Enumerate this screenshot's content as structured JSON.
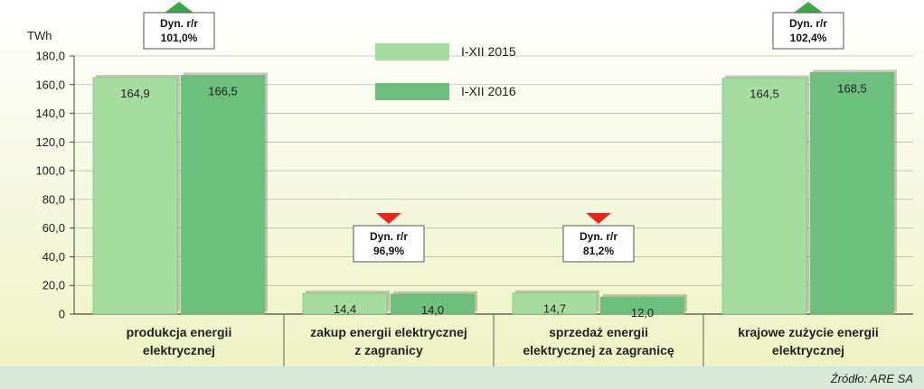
{
  "chart_data": {
    "type": "bar",
    "ylabel": "TWh",
    "ylim": [
      0,
      180
    ],
    "yticks": [
      "0",
      "20,0",
      "40,0",
      "60,0",
      "80,0",
      "100,0",
      "120,0",
      "140,0",
      "160,0",
      "180,0"
    ],
    "grid": true,
    "legend_position": "top-center",
    "categories": [
      [
        "produkcja energii",
        "elektrycznej"
      ],
      [
        "zakup energii elektrycznej",
        "z zagranicy"
      ],
      [
        "sprzedaż energii",
        "elektrycznej za zagranicę"
      ],
      [
        "krajowe zużycie energii",
        "elektrycznej"
      ]
    ],
    "series": [
      {
        "name": "I-XII 2015",
        "values": [
          164.9,
          14.4,
          14.7,
          164.5
        ],
        "labels": [
          "164,9",
          "14,4",
          "14,7",
          "164,5"
        ],
        "color": "#a6dca0"
      },
      {
        "name": "I-XII 2016",
        "values": [
          166.5,
          14.0,
          12.0,
          168.5
        ],
        "labels": [
          "166,5",
          "14,0",
          "12,0",
          "168,5"
        ],
        "color": "#6cbf7c"
      }
    ],
    "dynamics": [
      {
        "title": "Dyn. r/r",
        "value": "101,0%",
        "direction": "up"
      },
      {
        "title": "Dyn. r/r",
        "value": "96,9%",
        "direction": "down"
      },
      {
        "title": "Dyn. r/r",
        "value": "81,2%",
        "direction": "down"
      },
      {
        "title": "Dyn. r/r",
        "value": "102,4%",
        "direction": "up"
      }
    ],
    "source": "Źródło: ARE SA"
  },
  "colors": {
    "up_arrow": "#3aa84a",
    "down_arrow": "#e8261c",
    "background_top": "#ffffff",
    "background_bottom": "#eef3c4",
    "footer": "#d5e9d6"
  }
}
